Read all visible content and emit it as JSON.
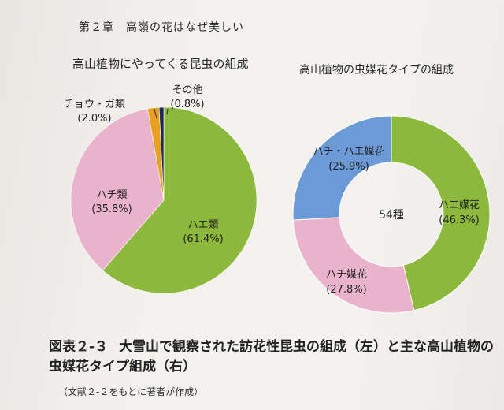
{
  "chapter_heading": "第２章　高嶺の花はなぜ美しい",
  "caption": {
    "number": "図表２-３",
    "text": "大雪山で観察された訪花性昆虫の組成（左）と主な高山植物の虫媒花タイプ組成（右）"
  },
  "source_note": "（文献２-２をもとに著者が作成）",
  "chart_data": [
    {
      "type": "pie",
      "title": "高山植物にやってくる昆虫の組成",
      "slices": [
        {
          "label": "ハエ類",
          "value": 61.4,
          "value_label": "(61.4%)",
          "color": "#8cb93c"
        },
        {
          "label": "ハチ類",
          "value": 35.8,
          "value_label": "(35.8%)",
          "color": "#eab3cc"
        },
        {
          "label": "チョウ・ガ類",
          "value": 2.0,
          "value_label": "(2.0%)",
          "color": "#e8a020"
        },
        {
          "label": "その他",
          "value": 0.8,
          "value_label": "(0.8%)",
          "color": "#1c2a52"
        }
      ]
    },
    {
      "type": "donut",
      "title": "高山植物の虫媒花タイプの組成",
      "center_label": "54種",
      "slices": [
        {
          "label": "ハエ媒花",
          "value": 46.3,
          "value_label": "(46.3%)",
          "color": "#8cb93c"
        },
        {
          "label": "ハチ媒花",
          "value": 27.8,
          "value_label": "(27.8%)",
          "color": "#eab3cc"
        },
        {
          "label": "ハチ・ハエ媒花",
          "value": 25.9,
          "value_label": "(25.9%)",
          "color": "#6c9ad6"
        }
      ]
    }
  ]
}
